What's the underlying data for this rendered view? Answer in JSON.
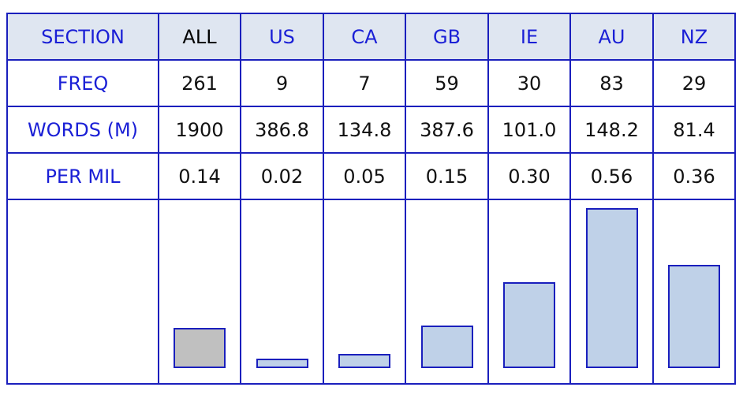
{
  "chart_data": {
    "type": "table",
    "row_labels": {
      "section": "SECTION",
      "freq": "FREQ",
      "words": "WORDS (M)",
      "per_mil": "PER MIL"
    },
    "columns": [
      {
        "code": "ALL",
        "freq": "261",
        "words": "1900",
        "per_mil": "0.14",
        "per_mil_value": 0.14
      },
      {
        "code": "US",
        "freq": "9",
        "words": "386.8",
        "per_mil": "0.02",
        "per_mil_value": 0.02
      },
      {
        "code": "CA",
        "freq": "7",
        "words": "134.8",
        "per_mil": "0.05",
        "per_mil_value": 0.05
      },
      {
        "code": "GB",
        "freq": "59",
        "words": "387.6",
        "per_mil": "0.15",
        "per_mil_value": 0.15
      },
      {
        "code": "IE",
        "freq": "30",
        "words": "101.0",
        "per_mil": "0.30",
        "per_mil_value": 0.3
      },
      {
        "code": "AU",
        "freq": "83",
        "words": "148.2",
        "per_mil": "0.56",
        "per_mil_value": 0.56
      },
      {
        "code": "NZ",
        "freq": "29",
        "words": "81.4",
        "per_mil": "0.36",
        "per_mil_value": 0.36
      }
    ],
    "bar_max": 0.56,
    "colors": {
      "border": "#1a1fbd",
      "label_text": "#1a1fd6",
      "header_bg": "#dfe6f1",
      "bar_fill": "#bfd1e8",
      "bar_all_fill": "#c0c0c0"
    }
  }
}
